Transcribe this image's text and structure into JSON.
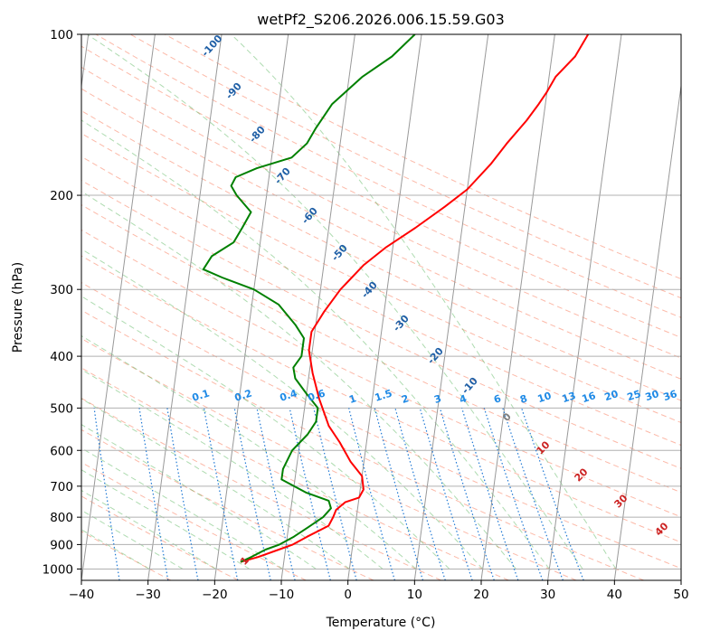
{
  "chart_data": {
    "type": "line",
    "title": "wetPf2_S206.2026.006.15.59.G03",
    "xlabel": "Temperature (°C)",
    "ylabel": "Pressure (hPa)",
    "xlim": [
      -40,
      50
    ],
    "ylim": [
      1050,
      100
    ],
    "y_scale": "log",
    "x_ticks": [
      -40,
      -30,
      -20,
      -10,
      0,
      10,
      20,
      30,
      40,
      50
    ],
    "y_ticks": [
      100,
      200,
      300,
      400,
      500,
      600,
      700,
      800,
      900,
      1000
    ],
    "grid": true,
    "series": [
      {
        "color": "#ff0000",
        "points": [
          [
            -16.5,
            970
          ],
          [
            -14,
            950
          ],
          [
            -11,
            920
          ],
          [
            -9,
            900
          ],
          [
            -7,
            870
          ],
          [
            -4,
            830
          ],
          [
            -3.5,
            800
          ],
          [
            -3.2,
            775
          ],
          [
            -2,
            750
          ],
          [
            0,
            735
          ],
          [
            0.5,
            710
          ],
          [
            0,
            670
          ],
          [
            -2,
            630
          ],
          [
            -4,
            580
          ],
          [
            -6,
            540
          ],
          [
            -8,
            480
          ],
          [
            -9.5,
            430
          ],
          [
            -10.5,
            390
          ],
          [
            -10.5,
            360
          ],
          [
            -9,
            330
          ],
          [
            -7,
            300
          ],
          [
            -4,
            270
          ],
          [
            -1,
            250
          ],
          [
            3,
            230
          ],
          [
            7,
            210
          ],
          [
            10,
            195
          ],
          [
            13,
            175
          ],
          [
            15,
            160
          ],
          [
            17.5,
            145
          ],
          [
            19,
            135
          ],
          [
            20,
            128
          ],
          [
            21,
            120
          ],
          [
            23.5,
            110
          ],
          [
            25,
            100
          ]
        ]
      },
      {
        "color": "#008000",
        "points": [
          [
            -16.5,
            970
          ],
          [
            -15,
            950
          ],
          [
            -13,
            920
          ],
          [
            -11,
            900
          ],
          [
            -9,
            870
          ],
          [
            -7,
            835
          ],
          [
            -5,
            800
          ],
          [
            -4,
            770
          ],
          [
            -4.5,
            745
          ],
          [
            -8,
            720
          ],
          [
            -10,
            700
          ],
          [
            -12,
            680
          ],
          [
            -12,
            650
          ],
          [
            -11,
            600
          ],
          [
            -9,
            560
          ],
          [
            -8,
            530
          ],
          [
            -8,
            500
          ],
          [
            -10,
            470
          ],
          [
            -12,
            440
          ],
          [
            -12.5,
            420
          ],
          [
            -11.5,
            400
          ],
          [
            -11.5,
            370
          ],
          [
            -13,
            350
          ],
          [
            -16,
            320
          ],
          [
            -20,
            300
          ],
          [
            -25,
            285
          ],
          [
            -28,
            275
          ],
          [
            -27,
            260
          ],
          [
            -24,
            245
          ],
          [
            -23,
            230
          ],
          [
            -22,
            215
          ],
          [
            -24.5,
            200
          ],
          [
            -25.5,
            192
          ],
          [
            -25,
            185
          ],
          [
            -22,
            178
          ],
          [
            -17,
            170
          ],
          [
            -15,
            160
          ],
          [
            -14,
            150
          ],
          [
            -12,
            135
          ],
          [
            -8,
            120
          ],
          [
            -4,
            110
          ],
          [
            -1,
            100
          ]
        ]
      }
    ],
    "annotations": {
      "dry_adiabats": [
        "-100",
        "-90",
        "-80",
        "-70",
        "-60",
        "-50",
        "-40",
        "-30",
        "-20",
        "-10"
      ],
      "mixing_ratios": [
        "0.1",
        "0.2",
        "0.4",
        "0.6",
        "1",
        "1.5",
        "2",
        "3",
        "4",
        "6",
        "8",
        "10",
        "13",
        "16",
        "20",
        "25",
        "30",
        "36"
      ],
      "moist_adiabats": [
        "0",
        "10",
        "20",
        "30",
        "40"
      ],
      "parcel_marker": "1",
      "colors": {
        "temperature": "#ff0000",
        "dewpoint": "#008000",
        "isotherm": "#999999",
        "dry_adiabat": "#fa8060",
        "moist_adiabat": "#4caf50",
        "mixing_ratio": "#1f78d4",
        "dry_label": "#1f5fa6",
        "moist_label": "#cc2222"
      }
    }
  }
}
